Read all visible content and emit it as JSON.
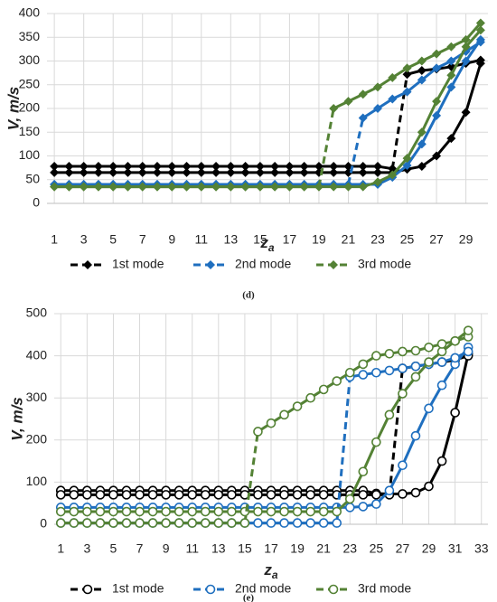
{
  "chart_data": [
    {
      "type": "line",
      "panel_label": "(d)",
      "ylabel": "V, m/s",
      "xlabel": {
        "text": "z",
        "sub": "a"
      },
      "x": [
        1,
        2,
        3,
        4,
        5,
        6,
        7,
        8,
        9,
        10,
        11,
        12,
        13,
        14,
        15,
        16,
        17,
        18,
        19,
        20,
        21,
        22,
        23,
        24,
        25,
        26,
        27,
        28,
        29,
        30
      ],
      "xlim": [
        0.5,
        30.5
      ],
      "xticks": [
        1,
        3,
        5,
        7,
        9,
        11,
        13,
        15,
        17,
        19,
        21,
        23,
        25,
        27,
        29
      ],
      "ylim": [
        0,
        400
      ],
      "yticks": [
        0,
        50,
        100,
        150,
        200,
        250,
        300,
        350,
        400
      ],
      "grid": true,
      "marker": "diamond",
      "series": [
        {
          "name": "1st mode",
          "color": "#000000",
          "values": [
            65,
            65,
            65,
            65,
            65,
            65,
            65,
            65,
            65,
            65,
            65,
            65,
            65,
            65,
            65,
            65,
            65,
            65,
            65,
            65,
            65,
            65,
            65,
            65,
            72,
            78,
            100,
            137,
            192,
            295
          ]
        },
        {
          "color": "#000000",
          "style": "dashed-jump",
          "values": [
            78,
            78,
            78,
            78,
            78,
            78,
            78,
            78,
            78,
            78,
            78,
            78,
            78,
            78,
            78,
            78,
            78,
            78,
            78,
            78,
            78,
            78,
            78,
            73,
            272,
            280,
            283,
            288,
            295,
            302
          ]
        },
        {
          "name": "2nd mode",
          "color": "#1f6fbf",
          "values": [
            40,
            40,
            40,
            40,
            40,
            40,
            40,
            40,
            40,
            40,
            40,
            40,
            40,
            40,
            40,
            40,
            40,
            40,
            40,
            40,
            40,
            40,
            40,
            55,
            80,
            125,
            185,
            245,
            300,
            345
          ]
        },
        {
          "color": "#1f6fbf",
          "style": "dashed-jump",
          "values": [
            40,
            40,
            40,
            40,
            40,
            40,
            40,
            40,
            40,
            40,
            40,
            40,
            40,
            40,
            40,
            40,
            40,
            40,
            40,
            40,
            40,
            180,
            200,
            220,
            235,
            260,
            285,
            300,
            320,
            340
          ]
        },
        {
          "name": "3rd mode",
          "color": "#548235",
          "values": [
            35,
            35,
            35,
            35,
            35,
            35,
            35,
            35,
            35,
            35,
            35,
            35,
            35,
            35,
            35,
            35,
            35,
            35,
            35,
            35,
            35,
            35,
            45,
            60,
            95,
            150,
            215,
            270,
            330,
            365
          ]
        },
        {
          "color": "#548235",
          "style": "dashed-jump",
          "values": [
            35,
            35,
            35,
            35,
            35,
            35,
            35,
            35,
            35,
            35,
            35,
            35,
            35,
            35,
            35,
            35,
            35,
            35,
            35,
            200,
            215,
            230,
            245,
            265,
            285,
            300,
            315,
            330,
            345,
            380
          ]
        }
      ]
    },
    {
      "type": "line",
      "panel_label": "(e)",
      "ylabel": "V, m/s",
      "xlabel": {
        "text": "z",
        "sub": "a"
      },
      "x": [
        1,
        2,
        3,
        4,
        5,
        6,
        7,
        8,
        9,
        10,
        11,
        12,
        13,
        14,
        15,
        16,
        17,
        18,
        19,
        20,
        21,
        22,
        23,
        24,
        25,
        26,
        27,
        28,
        29,
        30,
        31,
        32
      ],
      "xlim": [
        0.5,
        33.5
      ],
      "xticks": [
        1,
        3,
        5,
        7,
        9,
        11,
        13,
        15,
        17,
        19,
        21,
        23,
        25,
        27,
        29,
        31,
        33
      ],
      "ylim": [
        0,
        500
      ],
      "yticks": [
        0,
        100,
        200,
        300,
        400,
        500
      ],
      "grid": true,
      "marker": "circle",
      "series": [
        {
          "name": "1st mode",
          "color": "#000000",
          "values": [
            80,
            80,
            80,
            80,
            80,
            80,
            80,
            80,
            80,
            80,
            80,
            80,
            80,
            80,
            80,
            80,
            80,
            80,
            80,
            80,
            80,
            80,
            80,
            80,
            73,
            72,
            72,
            75,
            90,
            150,
            265,
            405
          ]
        },
        {
          "color": "#000000",
          "style": "dashed-jump",
          "values": [
            70,
            70,
            70,
            70,
            70,
            70,
            70,
            70,
            70,
            70,
            70,
            70,
            70,
            70,
            70,
            70,
            70,
            70,
            70,
            70,
            70,
            70,
            70,
            70,
            70,
            70,
            370,
            375,
            380,
            385,
            390,
            400
          ]
        },
        {
          "name": "2nd mode",
          "color": "#1f6fbf",
          "values": [
            40,
            40,
            40,
            40,
            40,
            40,
            40,
            40,
            40,
            40,
            40,
            40,
            40,
            40,
            40,
            40,
            40,
            40,
            40,
            40,
            40,
            40,
            40,
            42,
            48,
            80,
            140,
            210,
            275,
            330,
            380,
            420
          ]
        },
        {
          "color": "#1f6fbf",
          "style": "dashed-jump",
          "values": [
            3,
            3,
            3,
            3,
            3,
            3,
            3,
            3,
            3,
            3,
            3,
            3,
            3,
            3,
            3,
            3,
            3,
            3,
            3,
            3,
            3,
            3,
            350,
            355,
            360,
            365,
            370,
            375,
            380,
            385,
            395,
            410
          ]
        },
        {
          "name": "3rd mode",
          "color": "#548235",
          "values": [
            30,
            30,
            30,
            30,
            30,
            30,
            30,
            30,
            30,
            30,
            30,
            30,
            30,
            30,
            30,
            30,
            30,
            30,
            30,
            30,
            30,
            30,
            60,
            125,
            195,
            260,
            310,
            350,
            385,
            410,
            435,
            445
          ]
        },
        {
          "color": "#548235",
          "style": "dashed-jump",
          "values": [
            3,
            3,
            3,
            3,
            3,
            3,
            3,
            3,
            3,
            3,
            3,
            3,
            3,
            3,
            3,
            220,
            240,
            260,
            280,
            300,
            320,
            340,
            360,
            380,
            400,
            405,
            410,
            412,
            420,
            428,
            435,
            460
          ]
        }
      ]
    }
  ]
}
